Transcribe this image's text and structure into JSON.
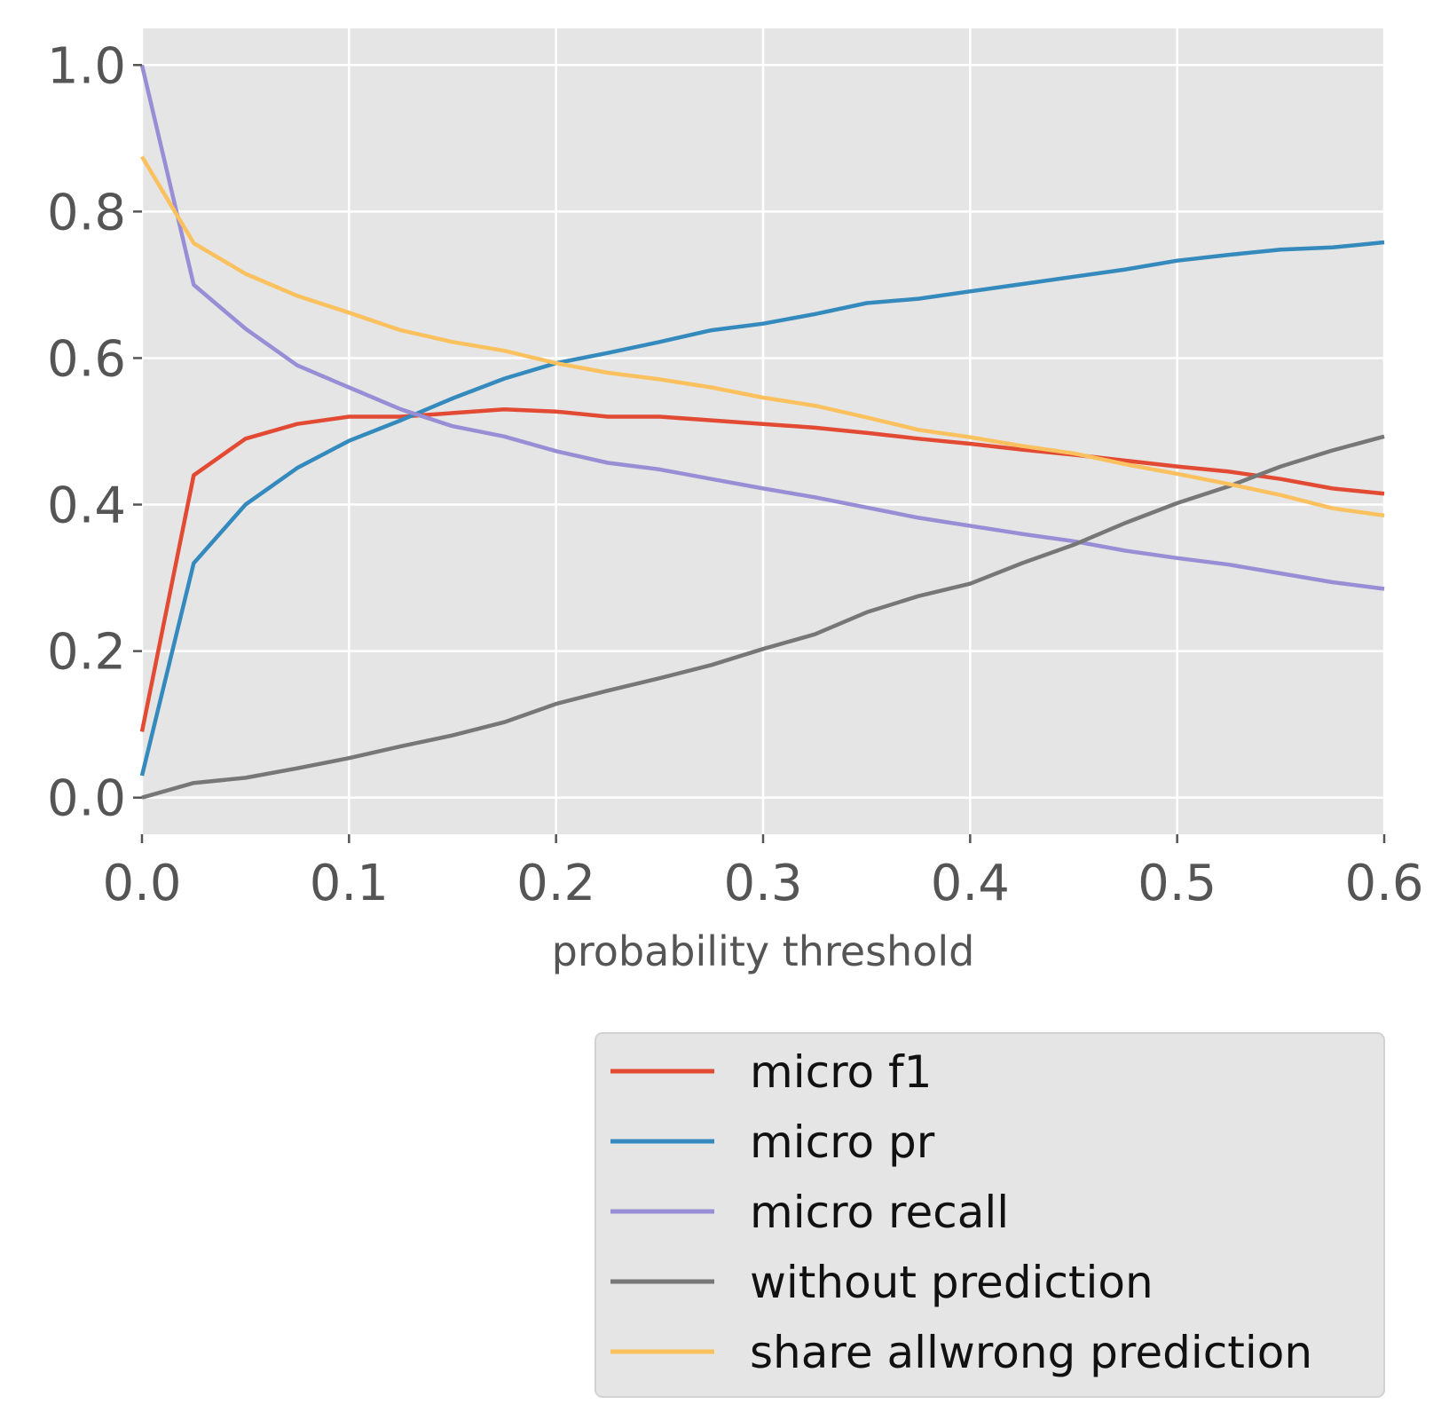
{
  "chart_data": {
    "type": "line",
    "title": "",
    "xlabel": "probability threshold",
    "ylabel": "",
    "xlim": [
      0.0,
      0.6
    ],
    "ylim": [
      -0.05,
      1.05
    ],
    "xticks": [
      "0.0",
      "0.1",
      "0.2",
      "0.3",
      "0.4",
      "0.5",
      "0.6"
    ],
    "yticks": [
      "0.0",
      "0.2",
      "0.4",
      "0.6",
      "0.8",
      "1.0"
    ],
    "grid": true,
    "legend_position": "below-right",
    "x": [
      0.0,
      0.025,
      0.05,
      0.075,
      0.1,
      0.125,
      0.15,
      0.175,
      0.2,
      0.225,
      0.25,
      0.275,
      0.3,
      0.325,
      0.35,
      0.375,
      0.4,
      0.425,
      0.45,
      0.475,
      0.5,
      0.525,
      0.55,
      0.575,
      0.6
    ],
    "series": [
      {
        "name": "micro f1",
        "color": "#e24a33",
        "values": [
          0.09,
          0.44,
          0.49,
          0.51,
          0.52,
          0.52,
          0.525,
          0.53,
          0.527,
          0.52,
          0.52,
          0.515,
          0.51,
          0.505,
          0.498,
          0.49,
          0.483,
          0.475,
          0.468,
          0.46,
          0.452,
          0.445,
          0.435,
          0.422,
          0.415
        ]
      },
      {
        "name": "micro pr",
        "color": "#348abd",
        "values": [
          0.03,
          0.32,
          0.4,
          0.45,
          0.487,
          0.515,
          0.545,
          0.572,
          0.593,
          0.607,
          0.622,
          0.638,
          0.647,
          0.66,
          0.675,
          0.681,
          0.691,
          0.701,
          0.711,
          0.721,
          0.733,
          0.741,
          0.748,
          0.751,
          0.758
        ]
      },
      {
        "name": "micro recall",
        "color": "#988ed5",
        "values": [
          1.0,
          0.7,
          0.64,
          0.59,
          0.56,
          0.53,
          0.507,
          0.493,
          0.473,
          0.457,
          0.448,
          0.435,
          0.422,
          0.41,
          0.396,
          0.382,
          0.371,
          0.36,
          0.35,
          0.337,
          0.327,
          0.318,
          0.306,
          0.294,
          0.285
        ]
      },
      {
        "name": "without prediction",
        "color": "#777777",
        "values": [
          0.0,
          0.02,
          0.027,
          0.04,
          0.054,
          0.07,
          0.085,
          0.103,
          0.128,
          0.146,
          0.163,
          0.181,
          0.203,
          0.223,
          0.253,
          0.275,
          0.292,
          0.32,
          0.345,
          0.375,
          0.402,
          0.425,
          0.452,
          0.474,
          0.493
        ]
      },
      {
        "name": "share allwrong prediction",
        "color": "#fbc15e",
        "values": [
          0.875,
          0.757,
          0.715,
          0.685,
          0.662,
          0.638,
          0.622,
          0.61,
          0.593,
          0.58,
          0.571,
          0.56,
          0.546,
          0.535,
          0.519,
          0.502,
          0.492,
          0.48,
          0.47,
          0.455,
          0.442,
          0.428,
          0.413,
          0.395,
          0.385
        ]
      }
    ]
  }
}
